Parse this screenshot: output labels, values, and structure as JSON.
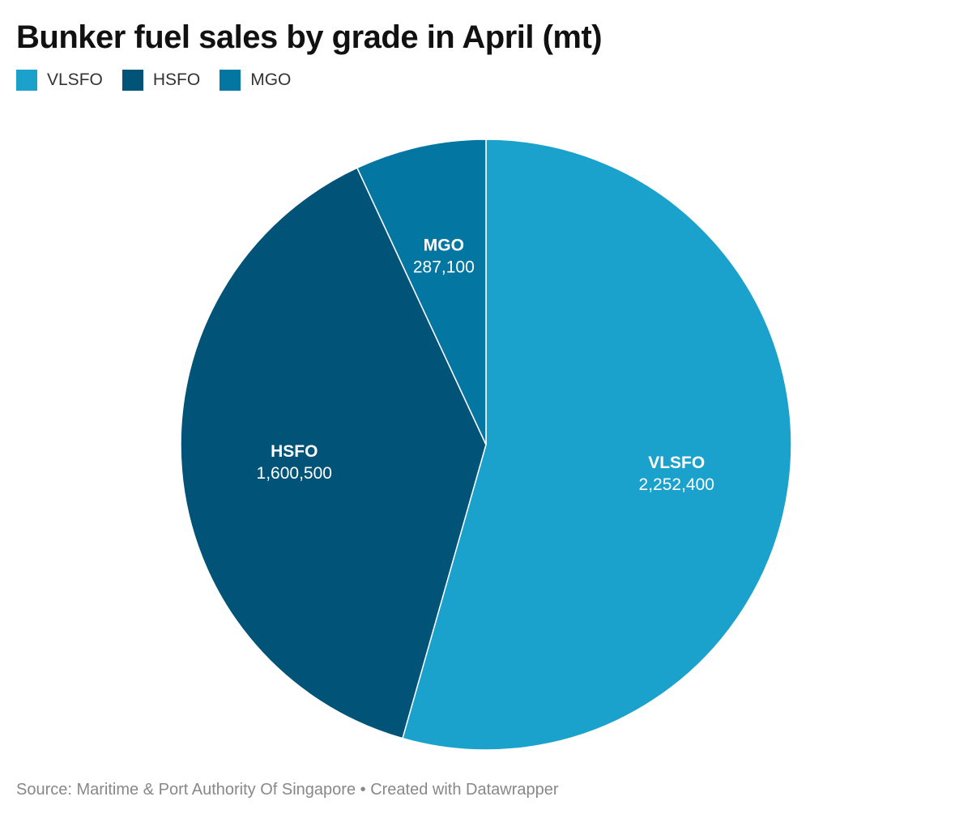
{
  "title": "Bunker fuel sales by grade in April (mt)",
  "footer": {
    "source": "Source: Maritime & Port Authority Of Singapore",
    "separator": " • ",
    "credit": "Created with Datawrapper"
  },
  "legend": [
    {
      "label": "VLSFO",
      "color": "#1aa1cc"
    },
    {
      "label": "HSFO",
      "color": "#015378"
    },
    {
      "label": "MGO",
      "color": "#0476a2"
    }
  ],
  "chart_data": {
    "type": "pie",
    "title": "Bunker fuel sales by grade in April (mt)",
    "slices": [
      {
        "label": "VLSFO",
        "value": 2252400,
        "value_label": "2,252,400",
        "color": "#1aa1cc"
      },
      {
        "label": "HSFO",
        "value": 1600500,
        "value_label": "1,600,500",
        "color": "#015378"
      },
      {
        "label": "MGO",
        "value": 287100,
        "value_label": "287,100",
        "color": "#0476a2"
      }
    ],
    "start_direction": "12 o'clock",
    "order": "clockwise",
    "legend_placement": "top-left"
  }
}
